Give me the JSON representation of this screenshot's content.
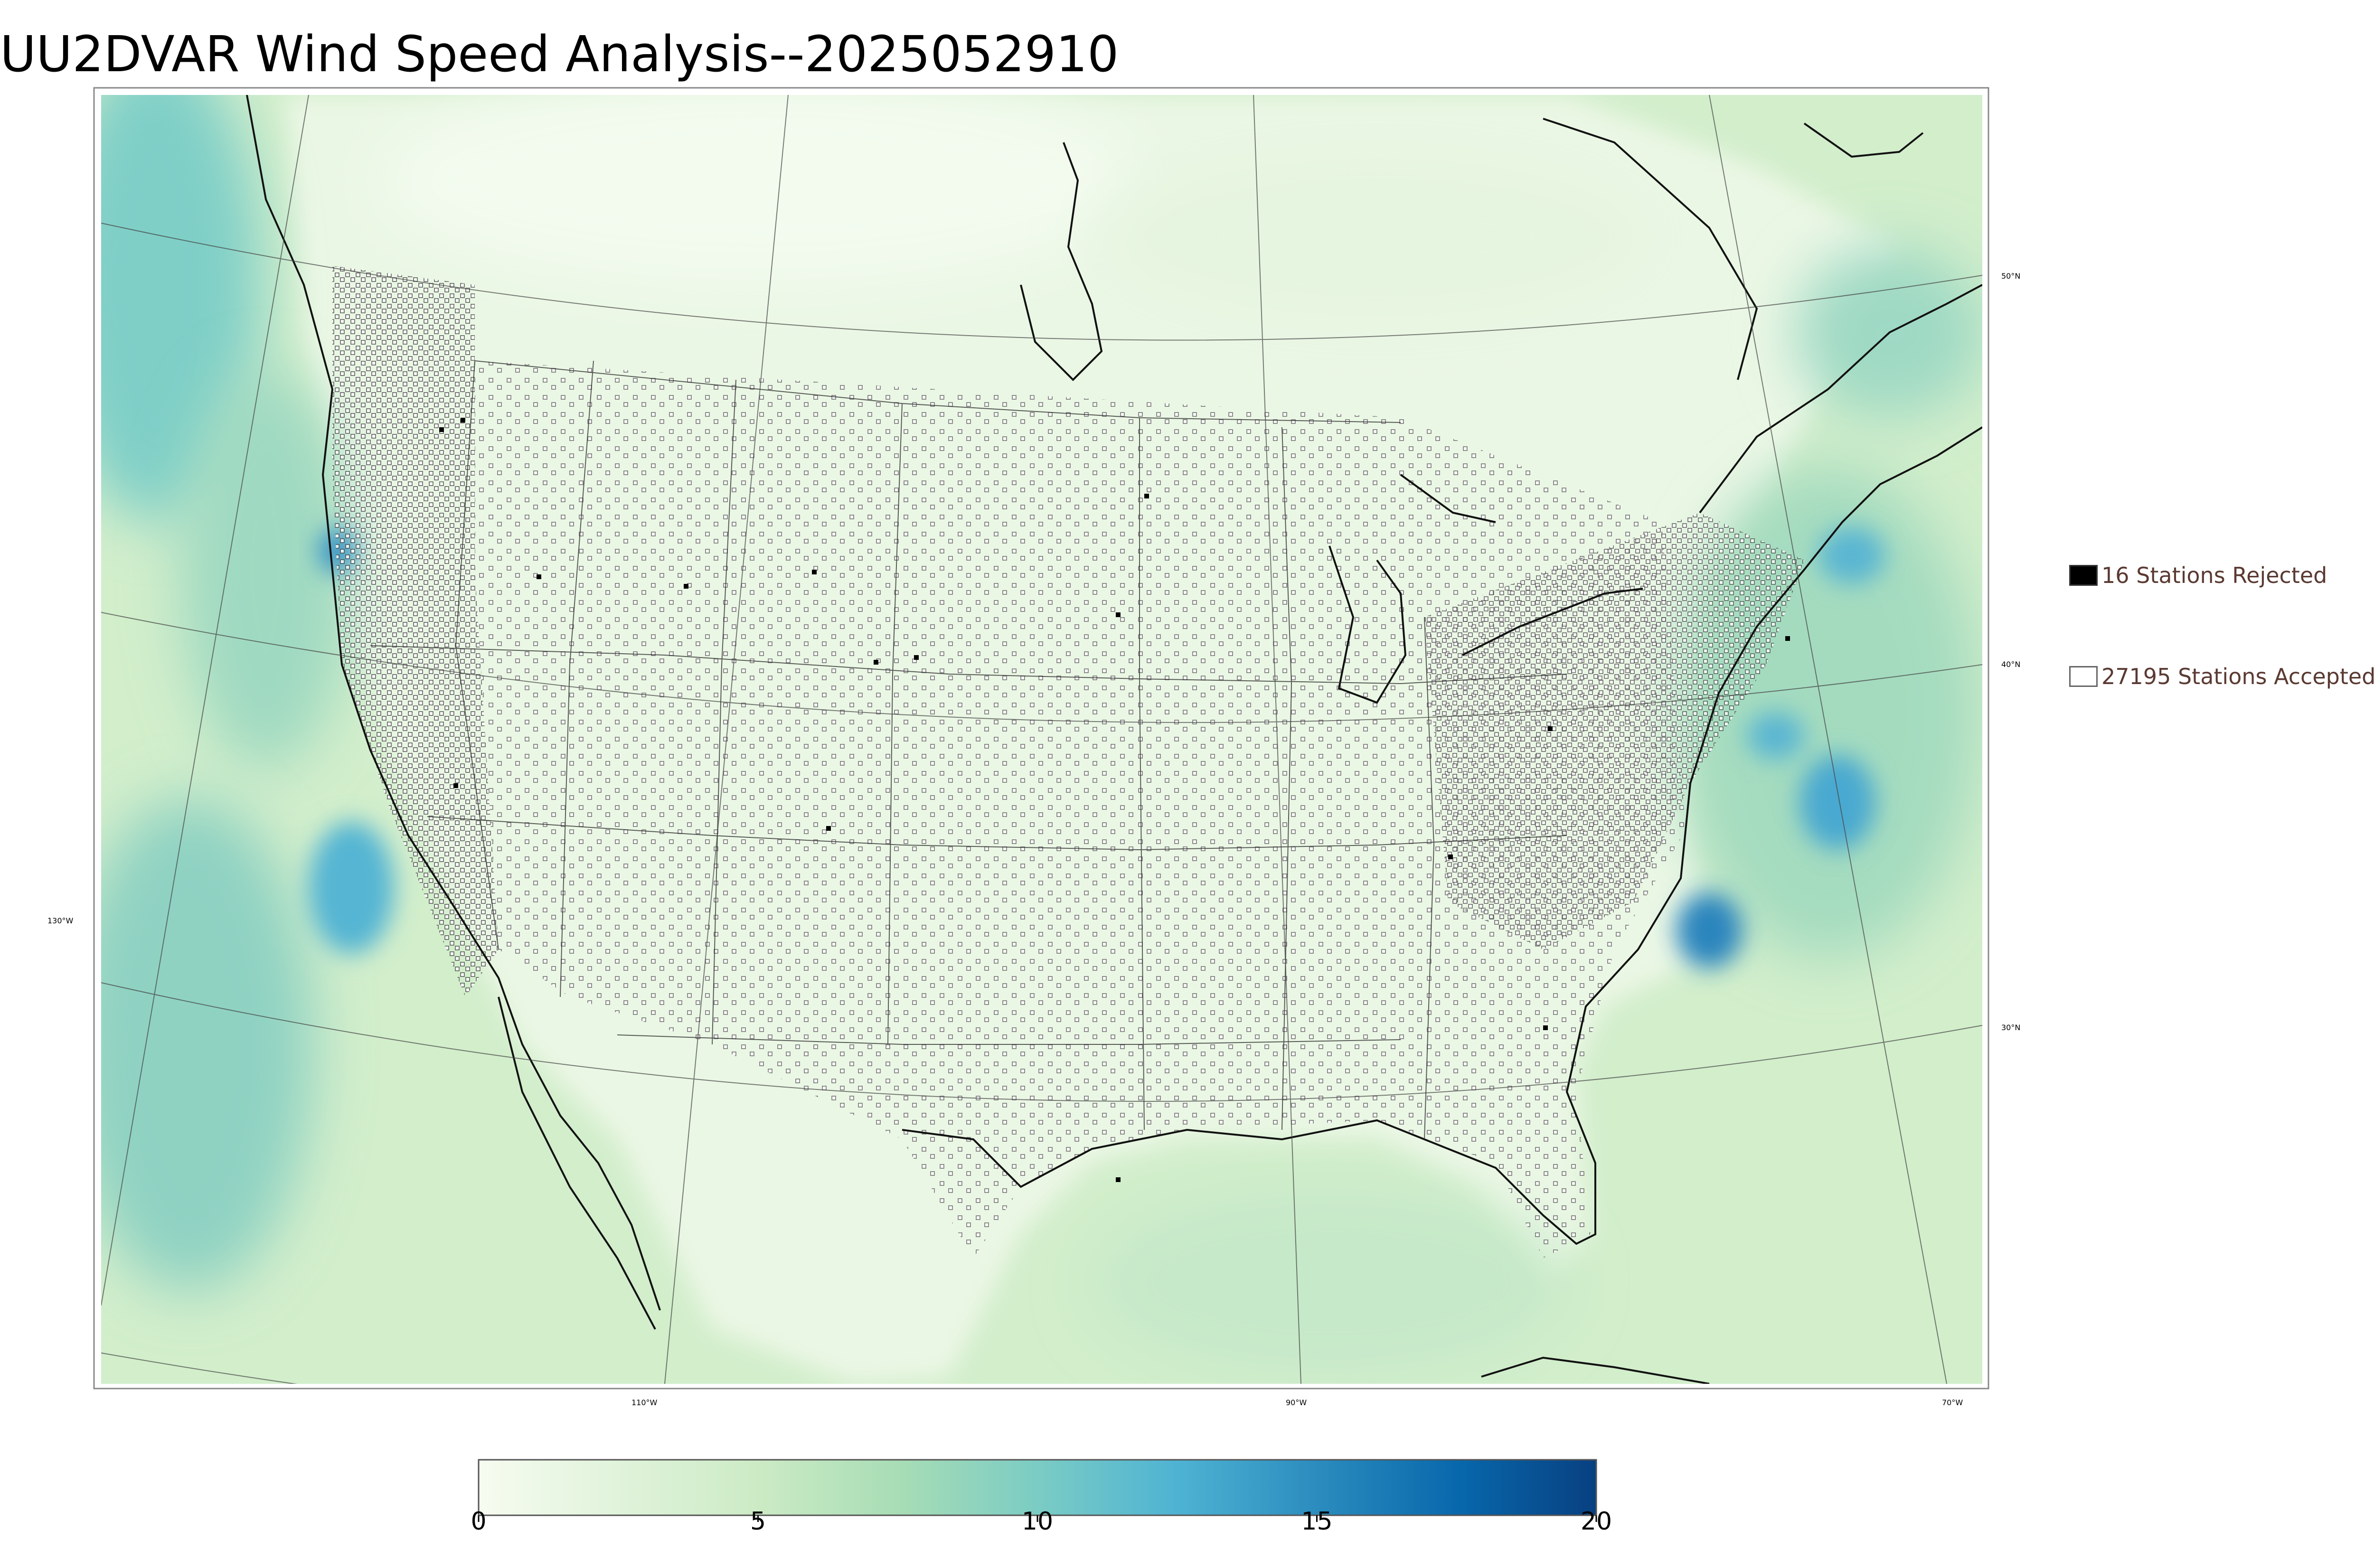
{
  "title": "UU2DVAR Wind Speed Analysis--2025052910",
  "legend": {
    "rejected_label": "16 Stations Rejected",
    "accepted_label": "27195 Stations Accepted",
    "rejected_color": "#000000",
    "accepted_color": "#ffffff"
  },
  "graticule_labels": {
    "lon": [
      "130°W",
      "110°W",
      "90°W",
      "70°W"
    ],
    "lat": [
      "50°N",
      "40°N",
      "30°N"
    ]
  },
  "colorbar": {
    "min": 0,
    "max": 20,
    "ticks": [
      "0",
      "5",
      "10",
      "15",
      "20"
    ],
    "colors": [
      "#f7fcf0",
      "#e0f3db",
      "#ccebc5",
      "#a8ddb5",
      "#7bccc4",
      "#4eb3d3",
      "#2b8cbe",
      "#0868ac",
      "#084081"
    ]
  },
  "chart_data": {
    "type": "heatmap",
    "title": "UU2DVAR Wind Speed Analysis--2025052910",
    "colorbar_range": [
      0,
      20
    ],
    "colorbar_ticks": [
      0,
      5,
      10,
      15,
      20
    ],
    "stations": {
      "rejected": 16,
      "accepted": 27195
    },
    "legend_position": "right"
  }
}
